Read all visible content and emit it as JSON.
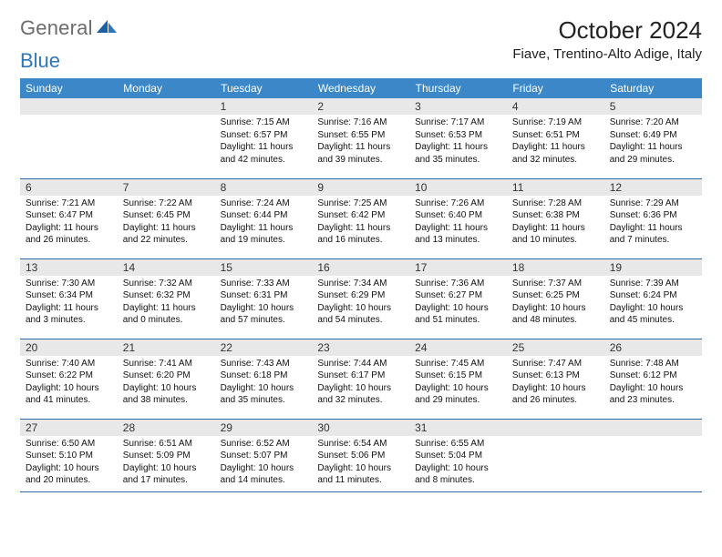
{
  "brand": {
    "part1": "General",
    "part2": "Blue"
  },
  "title": "October 2024",
  "location": "Fiave, Trentino-Alto Adige, Italy",
  "colors": {
    "header_bg": "#3b87c8",
    "header_text": "#ffffff",
    "daynum_bg": "#e8e8e8",
    "border": "#2f6aa5",
    "logo_gray": "#6b6b6b",
    "logo_blue": "#2f77bd"
  },
  "day_headers": [
    "Sunday",
    "Monday",
    "Tuesday",
    "Wednesday",
    "Thursday",
    "Friday",
    "Saturday"
  ],
  "weeks": [
    [
      {
        "n": "",
        "sr": "",
        "ss": "",
        "dl": ""
      },
      {
        "n": "",
        "sr": "",
        "ss": "",
        "dl": ""
      },
      {
        "n": "1",
        "sr": "Sunrise: 7:15 AM",
        "ss": "Sunset: 6:57 PM",
        "dl": "Daylight: 11 hours and 42 minutes."
      },
      {
        "n": "2",
        "sr": "Sunrise: 7:16 AM",
        "ss": "Sunset: 6:55 PM",
        "dl": "Daylight: 11 hours and 39 minutes."
      },
      {
        "n": "3",
        "sr": "Sunrise: 7:17 AM",
        "ss": "Sunset: 6:53 PM",
        "dl": "Daylight: 11 hours and 35 minutes."
      },
      {
        "n": "4",
        "sr": "Sunrise: 7:19 AM",
        "ss": "Sunset: 6:51 PM",
        "dl": "Daylight: 11 hours and 32 minutes."
      },
      {
        "n": "5",
        "sr": "Sunrise: 7:20 AM",
        "ss": "Sunset: 6:49 PM",
        "dl": "Daylight: 11 hours and 29 minutes."
      }
    ],
    [
      {
        "n": "6",
        "sr": "Sunrise: 7:21 AM",
        "ss": "Sunset: 6:47 PM",
        "dl": "Daylight: 11 hours and 26 minutes."
      },
      {
        "n": "7",
        "sr": "Sunrise: 7:22 AM",
        "ss": "Sunset: 6:45 PM",
        "dl": "Daylight: 11 hours and 22 minutes."
      },
      {
        "n": "8",
        "sr": "Sunrise: 7:24 AM",
        "ss": "Sunset: 6:44 PM",
        "dl": "Daylight: 11 hours and 19 minutes."
      },
      {
        "n": "9",
        "sr": "Sunrise: 7:25 AM",
        "ss": "Sunset: 6:42 PM",
        "dl": "Daylight: 11 hours and 16 minutes."
      },
      {
        "n": "10",
        "sr": "Sunrise: 7:26 AM",
        "ss": "Sunset: 6:40 PM",
        "dl": "Daylight: 11 hours and 13 minutes."
      },
      {
        "n": "11",
        "sr": "Sunrise: 7:28 AM",
        "ss": "Sunset: 6:38 PM",
        "dl": "Daylight: 11 hours and 10 minutes."
      },
      {
        "n": "12",
        "sr": "Sunrise: 7:29 AM",
        "ss": "Sunset: 6:36 PM",
        "dl": "Daylight: 11 hours and 7 minutes."
      }
    ],
    [
      {
        "n": "13",
        "sr": "Sunrise: 7:30 AM",
        "ss": "Sunset: 6:34 PM",
        "dl": "Daylight: 11 hours and 3 minutes."
      },
      {
        "n": "14",
        "sr": "Sunrise: 7:32 AM",
        "ss": "Sunset: 6:32 PM",
        "dl": "Daylight: 11 hours and 0 minutes."
      },
      {
        "n": "15",
        "sr": "Sunrise: 7:33 AM",
        "ss": "Sunset: 6:31 PM",
        "dl": "Daylight: 10 hours and 57 minutes."
      },
      {
        "n": "16",
        "sr": "Sunrise: 7:34 AM",
        "ss": "Sunset: 6:29 PM",
        "dl": "Daylight: 10 hours and 54 minutes."
      },
      {
        "n": "17",
        "sr": "Sunrise: 7:36 AM",
        "ss": "Sunset: 6:27 PM",
        "dl": "Daylight: 10 hours and 51 minutes."
      },
      {
        "n": "18",
        "sr": "Sunrise: 7:37 AM",
        "ss": "Sunset: 6:25 PM",
        "dl": "Daylight: 10 hours and 48 minutes."
      },
      {
        "n": "19",
        "sr": "Sunrise: 7:39 AM",
        "ss": "Sunset: 6:24 PM",
        "dl": "Daylight: 10 hours and 45 minutes."
      }
    ],
    [
      {
        "n": "20",
        "sr": "Sunrise: 7:40 AM",
        "ss": "Sunset: 6:22 PM",
        "dl": "Daylight: 10 hours and 41 minutes."
      },
      {
        "n": "21",
        "sr": "Sunrise: 7:41 AM",
        "ss": "Sunset: 6:20 PM",
        "dl": "Daylight: 10 hours and 38 minutes."
      },
      {
        "n": "22",
        "sr": "Sunrise: 7:43 AM",
        "ss": "Sunset: 6:18 PM",
        "dl": "Daylight: 10 hours and 35 minutes."
      },
      {
        "n": "23",
        "sr": "Sunrise: 7:44 AM",
        "ss": "Sunset: 6:17 PM",
        "dl": "Daylight: 10 hours and 32 minutes."
      },
      {
        "n": "24",
        "sr": "Sunrise: 7:45 AM",
        "ss": "Sunset: 6:15 PM",
        "dl": "Daylight: 10 hours and 29 minutes."
      },
      {
        "n": "25",
        "sr": "Sunrise: 7:47 AM",
        "ss": "Sunset: 6:13 PM",
        "dl": "Daylight: 10 hours and 26 minutes."
      },
      {
        "n": "26",
        "sr": "Sunrise: 7:48 AM",
        "ss": "Sunset: 6:12 PM",
        "dl": "Daylight: 10 hours and 23 minutes."
      }
    ],
    [
      {
        "n": "27",
        "sr": "Sunrise: 6:50 AM",
        "ss": "Sunset: 5:10 PM",
        "dl": "Daylight: 10 hours and 20 minutes."
      },
      {
        "n": "28",
        "sr": "Sunrise: 6:51 AM",
        "ss": "Sunset: 5:09 PM",
        "dl": "Daylight: 10 hours and 17 minutes."
      },
      {
        "n": "29",
        "sr": "Sunrise: 6:52 AM",
        "ss": "Sunset: 5:07 PM",
        "dl": "Daylight: 10 hours and 14 minutes."
      },
      {
        "n": "30",
        "sr": "Sunrise: 6:54 AM",
        "ss": "Sunset: 5:06 PM",
        "dl": "Daylight: 10 hours and 11 minutes."
      },
      {
        "n": "31",
        "sr": "Sunrise: 6:55 AM",
        "ss": "Sunset: 5:04 PM",
        "dl": "Daylight: 10 hours and 8 minutes."
      },
      {
        "n": "",
        "sr": "",
        "ss": "",
        "dl": ""
      },
      {
        "n": "",
        "sr": "",
        "ss": "",
        "dl": ""
      }
    ]
  ]
}
